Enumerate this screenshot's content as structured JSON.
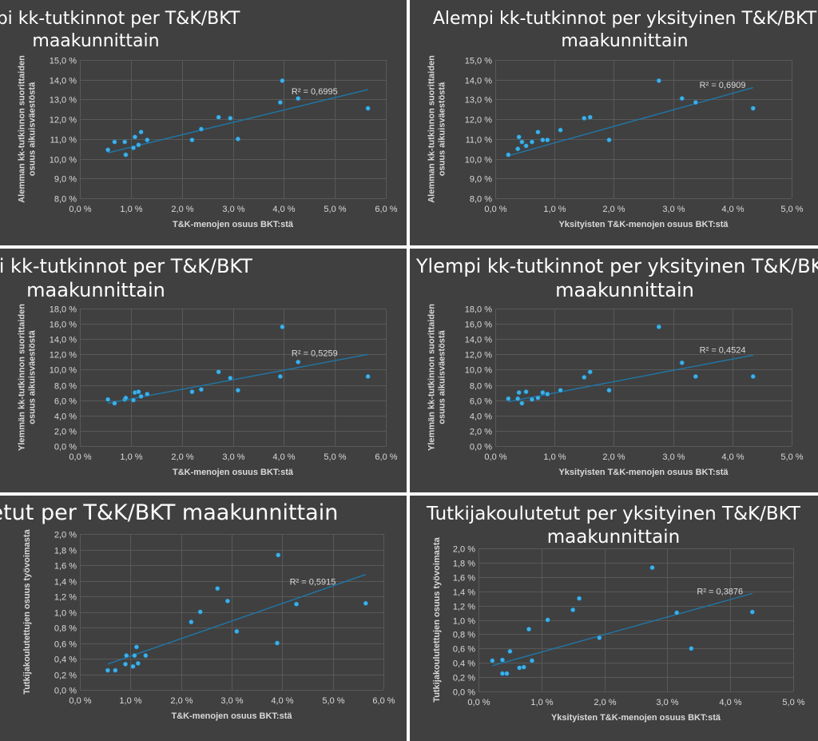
{
  "colors": {
    "background": "#404040",
    "marker": "#3fb0e8",
    "trendline": "#1f77a8",
    "grid": "#595959",
    "text": "#d9d9d9",
    "title": "#ffffff"
  },
  "chart_data": [
    {
      "type": "scatter",
      "title": [
        "Alempi kk-tutkinnot per T&K/BKT",
        "maakunnittain"
      ],
      "xlabel": "T&K-menojen osuus BKT:stä",
      "ylabel": [
        "Alemman kk-tutkinnon suorittaiden",
        "osuus aikuisväestöstä"
      ],
      "xlim": [
        0,
        6
      ],
      "xstep": 1,
      "ylim": [
        8,
        15
      ],
      "ystep": 1,
      "r2_label": "R² = 0,6995",
      "trendline": [
        [
          0.55,
          10.3
        ],
        [
          5.65,
          13.5
        ]
      ],
      "points": [
        [
          0.55,
          10.45
        ],
        [
          0.68,
          10.85
        ],
        [
          0.88,
          10.85
        ],
        [
          0.9,
          10.2
        ],
        [
          1.05,
          10.55
        ],
        [
          1.08,
          11.1
        ],
        [
          1.15,
          10.7
        ],
        [
          1.2,
          11.35
        ],
        [
          1.32,
          10.95
        ],
        [
          2.2,
          10.95
        ],
        [
          2.38,
          11.5
        ],
        [
          2.72,
          12.1
        ],
        [
          2.95,
          12.05
        ],
        [
          3.1,
          11.0
        ],
        [
          3.93,
          12.85
        ],
        [
          3.97,
          13.95
        ],
        [
          4.28,
          13.05
        ],
        [
          5.65,
          12.55
        ]
      ]
    },
    {
      "type": "scatter",
      "title": [
        "Alempi kk-tutkinnot per yksityinen T&K/BKT",
        "maakunnittain"
      ],
      "xlabel": "Yksityisten T&K-menojen osuus BKT:stä",
      "ylabel": [
        "Alemman kk-tutkinnon suorittaiden",
        "osuus aikuisväestöstä"
      ],
      "xlim": [
        0,
        5
      ],
      "xstep": 1,
      "ylim": [
        8,
        15
      ],
      "ystep": 1,
      "r2_label": "R² = 0,6909",
      "trendline": [
        [
          0.22,
          10.15
        ],
        [
          4.35,
          13.6
        ]
      ],
      "points": [
        [
          0.22,
          10.2
        ],
        [
          0.38,
          10.5
        ],
        [
          0.4,
          11.1
        ],
        [
          0.45,
          10.85
        ],
        [
          0.52,
          10.65
        ],
        [
          0.62,
          10.85
        ],
        [
          0.72,
          11.35
        ],
        [
          0.8,
          10.95
        ],
        [
          0.88,
          10.95
        ],
        [
          1.1,
          11.45
        ],
        [
          1.5,
          12.05
        ],
        [
          1.6,
          12.1
        ],
        [
          1.92,
          10.95
        ],
        [
          2.76,
          13.95
        ],
        [
          3.15,
          13.05
        ],
        [
          3.38,
          12.85
        ],
        [
          4.35,
          12.55
        ]
      ]
    },
    {
      "type": "scatter",
      "title": [
        "Ylempi kk-tutkinnot per T&K/BKT",
        "maakunnittain"
      ],
      "xlabel": "T&K-menojen osuus BKT:stä",
      "ylabel": [
        "Ylemmän kk-tutkinnon suorittaiden",
        "osuus aikuisväestöstä"
      ],
      "xlim": [
        0,
        6
      ],
      "xstep": 1,
      "ylim": [
        0,
        18
      ],
      "ystep": 2,
      "r2_label": "R² = 0,5259",
      "trendline": [
        [
          0.55,
          5.6
        ],
        [
          5.65,
          12.0
        ]
      ],
      "points": [
        [
          0.55,
          6.1
        ],
        [
          0.68,
          5.6
        ],
        [
          0.88,
          6.1
        ],
        [
          0.9,
          6.3
        ],
        [
          1.05,
          6.0
        ],
        [
          1.08,
          7.0
        ],
        [
          1.15,
          7.1
        ],
        [
          1.2,
          6.5
        ],
        [
          1.32,
          6.8
        ],
        [
          2.2,
          7.1
        ],
        [
          2.38,
          7.4
        ],
        [
          2.72,
          9.7
        ],
        [
          2.95,
          8.9
        ],
        [
          3.1,
          7.3
        ],
        [
          3.93,
          9.1
        ],
        [
          3.97,
          15.6
        ],
        [
          4.28,
          11.0
        ],
        [
          5.65,
          9.1
        ]
      ]
    },
    {
      "type": "scatter",
      "title": [
        "Ylempi kk-tutkinnot per yksityinen T&K/BKT",
        "maakunnittain"
      ],
      "xlabel": "Yksityisten T&K-menojen osuus BKT:stä",
      "ylabel": [
        "Ylemmän kk-tutkinnon suorittaiden",
        "osuus aikuisväestöstä"
      ],
      "xlim": [
        0,
        5
      ],
      "xstep": 1,
      "ylim": [
        0,
        18
      ],
      "ystep": 2,
      "r2_label": "R² = 0,4524",
      "trendline": [
        [
          0.22,
          5.8
        ],
        [
          4.35,
          11.9
        ]
      ],
      "points": [
        [
          0.22,
          6.2
        ],
        [
          0.38,
          6.2
        ],
        [
          0.4,
          7.0
        ],
        [
          0.45,
          5.6
        ],
        [
          0.52,
          7.1
        ],
        [
          0.62,
          6.1
        ],
        [
          0.72,
          6.3
        ],
        [
          0.8,
          7.0
        ],
        [
          0.88,
          6.8
        ],
        [
          1.1,
          7.3
        ],
        [
          1.5,
          9.0
        ],
        [
          1.6,
          9.7
        ],
        [
          1.92,
          7.3
        ],
        [
          2.76,
          15.6
        ],
        [
          3.15,
          10.9
        ],
        [
          3.38,
          9.1
        ],
        [
          4.35,
          9.1
        ]
      ]
    },
    {
      "type": "scatter",
      "title": [
        "Tutkijakoulutetut per T&K/BKT maakunnittain"
      ],
      "xlabel": "T&K-menojen osuus BKT:stä",
      "ylabel": [
        "Tutkijakoulutettujen osuus työvoimasta"
      ],
      "xlim": [
        0,
        6
      ],
      "xstep": 1,
      "ylim": [
        0,
        2
      ],
      "ystep": 0.2,
      "r2_label": "R² = 0,5915",
      "trendline": [
        [
          0.55,
          0.33
        ],
        [
          5.65,
          1.48
        ]
      ],
      "points": [
        [
          0.55,
          0.25
        ],
        [
          0.7,
          0.25
        ],
        [
          0.9,
          0.33
        ],
        [
          0.92,
          0.44
        ],
        [
          1.05,
          0.3
        ],
        [
          1.08,
          0.44
        ],
        [
          1.12,
          0.55
        ],
        [
          1.15,
          0.34
        ],
        [
          1.3,
          0.44
        ],
        [
          2.2,
          0.87
        ],
        [
          2.38,
          1.0
        ],
        [
          2.72,
          1.3
        ],
        [
          2.92,
          1.14
        ],
        [
          3.1,
          0.75
        ],
        [
          3.9,
          0.6
        ],
        [
          3.92,
          1.73
        ],
        [
          4.28,
          1.1
        ],
        [
          5.65,
          1.11
        ]
      ]
    },
    {
      "type": "scatter",
      "title": [
        "Tutkijakoulutetut per yksityinen T&K/BKT",
        "maakunnittain"
      ],
      "xlabel": "Yksityisten T&K-menojen osuus BKT:stä",
      "ylabel": [
        "Tutkijakoulutettujen osuus työvoimasta"
      ],
      "xlim": [
        0,
        5
      ],
      "xstep": 1,
      "ylim": [
        0,
        2
      ],
      "ystep": 0.2,
      "r2_label": "R² = 0,3876",
      "trendline": [
        [
          0.22,
          0.36
        ],
        [
          4.35,
          1.37
        ]
      ],
      "points": [
        [
          0.22,
          0.43
        ],
        [
          0.38,
          0.44
        ],
        [
          0.38,
          0.25
        ],
        [
          0.45,
          0.25
        ],
        [
          0.5,
          0.56
        ],
        [
          0.65,
          0.33
        ],
        [
          0.72,
          0.34
        ],
        [
          0.8,
          0.87
        ],
        [
          0.85,
          0.43
        ],
        [
          1.1,
          1.0
        ],
        [
          1.5,
          1.14
        ],
        [
          1.6,
          1.3
        ],
        [
          1.92,
          0.75
        ],
        [
          2.76,
          1.73
        ],
        [
          3.15,
          1.1
        ],
        [
          3.38,
          0.6
        ],
        [
          4.35,
          1.11
        ]
      ]
    }
  ]
}
